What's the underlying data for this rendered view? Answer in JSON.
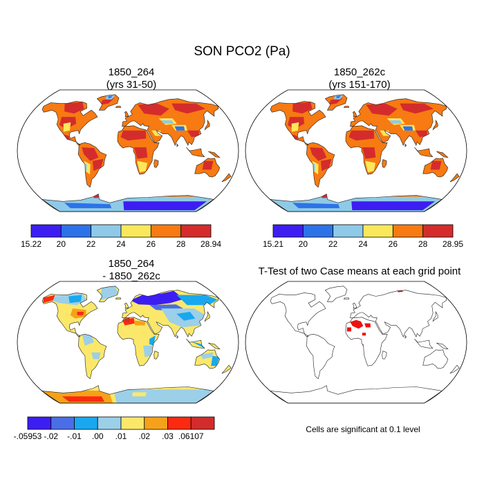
{
  "title": "SON PCO2 (Pa)",
  "panels": [
    {
      "title_line1": "1850_264",
      "title_line2": "(yrs 31-50)",
      "colorbar": {
        "colors": [
          "#3d1ef2",
          "#2d73e8",
          "#8ecae8",
          "#fbe85a",
          "#f77a12",
          "#d42c2c"
        ],
        "labels": [
          "15.22",
          "20",
          "22",
          "24",
          "26",
          "28",
          "28.94"
        ]
      }
    },
    {
      "title_line1": "1850_262c",
      "title_line2": "(yrs 151-170)",
      "colorbar": {
        "colors": [
          "#3d1ef2",
          "#2d73e8",
          "#8ecae8",
          "#fbe85a",
          "#f77a12",
          "#d42c2c"
        ],
        "labels": [
          "15.21",
          "20",
          "22",
          "24",
          "26",
          "28",
          "28.95"
        ]
      }
    },
    {
      "title_line1": "1850_264",
      "title_line2": "- 1850_262c",
      "colorbar": {
        "colors": [
          "#3d1ef2",
          "#4a6ee6",
          "#19a8f0",
          "#9ccfe8",
          "#fbe86a",
          "#f6a11a",
          "#fb2a10",
          "#d22c2c"
        ],
        "labels": [
          "-.05953",
          "-.02",
          "-.01",
          ".00",
          ".01",
          ".02",
          ".03",
          ".06107"
        ]
      }
    },
    {
      "title_line1": "T-Test of two Case means at each grid point",
      "note": "Cells are significant at 0.1 level",
      "significant_color": "#ee1111"
    }
  ]
}
